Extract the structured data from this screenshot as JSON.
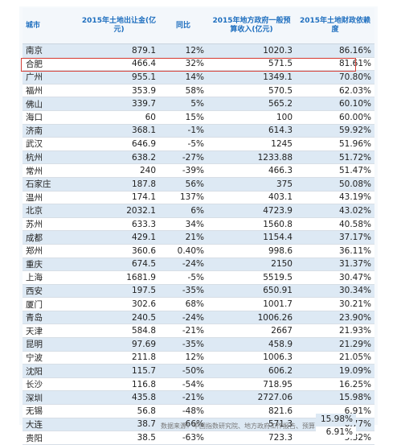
{
  "headers": {
    "city": "城市",
    "land_revenue": "2015年土地出让金(亿元)",
    "yoy": "同比",
    "budget_revenue": "2015年地方政府一般预算收入(亿元)",
    "dependence": "2015年土地财政依赖度"
  },
  "rows": [
    {
      "city": "南京",
      "land": "879.1",
      "yoy": "12%",
      "budget": "1020.3",
      "dep": "86.16%"
    },
    {
      "city": "合肥",
      "land": "466.4",
      "yoy": "32%",
      "budget": "571.5",
      "dep": "81.61%"
    },
    {
      "city": "广州",
      "land": "955.1",
      "yoy": "14%",
      "budget": "1349.1",
      "dep": "70.80%"
    },
    {
      "city": "福州",
      "land": "353.9",
      "yoy": "58%",
      "budget": "570.5",
      "dep": "62.03%"
    },
    {
      "city": "佛山",
      "land": "339.7",
      "yoy": "5%",
      "budget": "565.2",
      "dep": "60.10%"
    },
    {
      "city": "海口",
      "land": "60",
      "yoy": "15%",
      "budget": "100",
      "dep": "60.00%"
    },
    {
      "city": "济南",
      "land": "368.1",
      "yoy": "-1%",
      "budget": "614.3",
      "dep": "59.92%"
    },
    {
      "city": "武汉",
      "land": "646.9",
      "yoy": "-5%",
      "budget": "1245",
      "dep": "51.96%"
    },
    {
      "city": "杭州",
      "land": "638.2",
      "yoy": "-27%",
      "budget": "1233.88",
      "dep": "51.72%"
    },
    {
      "city": "常州",
      "land": "240",
      "yoy": "-39%",
      "budget": "466.3",
      "dep": "51.47%"
    },
    {
      "city": "石家庄",
      "land": "187.8",
      "yoy": "56%",
      "budget": "375",
      "dep": "50.08%"
    },
    {
      "city": "温州",
      "land": "174.1",
      "yoy": "137%",
      "budget": "403.1",
      "dep": "43.19%"
    },
    {
      "city": "北京",
      "land": "2032.1",
      "yoy": "6%",
      "budget": "4723.9",
      "dep": "43.02%"
    },
    {
      "city": "苏州",
      "land": "633.3",
      "yoy": "34%",
      "budget": "1560.8",
      "dep": "40.58%"
    },
    {
      "city": "成都",
      "land": "429.1",
      "yoy": "21%",
      "budget": "1154.4",
      "dep": "37.17%"
    },
    {
      "city": "郑州",
      "land": "360.6",
      "yoy": "0.40%",
      "budget": "998.6",
      "dep": "36.11%"
    },
    {
      "city": "重庆",
      "land": "674.5",
      "yoy": "-24%",
      "budget": "2150",
      "dep": "31.37%"
    },
    {
      "city": "上海",
      "land": "1681.9",
      "yoy": "-5%",
      "budget": "5519.5",
      "dep": "30.47%"
    },
    {
      "city": "西安",
      "land": "197.5",
      "yoy": "-35%",
      "budget": "650.91",
      "dep": "30.34%"
    },
    {
      "city": "厦门",
      "land": "302.6",
      "yoy": "68%",
      "budget": "1001.7",
      "dep": "30.21%"
    },
    {
      "city": "青岛",
      "land": "240.5",
      "yoy": "-24%",
      "budget": "1006.26",
      "dep": "23.90%"
    },
    {
      "city": "天津",
      "land": "584.8",
      "yoy": "-21%",
      "budget": "2667",
      "dep": "21.93%"
    },
    {
      "city": "昆明",
      "land": "97.69",
      "yoy": "-35%",
      "budget": "458.9",
      "dep": "21.29%"
    },
    {
      "city": "宁波",
      "land": "211.8",
      "yoy": "12%",
      "budget": "1006.3",
      "dep": "21.05%"
    },
    {
      "city": "沈阳",
      "land": "115.7",
      "yoy": "-50%",
      "budget": "606.2",
      "dep": "19.09%"
    },
    {
      "city": "长沙",
      "land": "116.8",
      "yoy": "-54%",
      "budget": "718.95",
      "dep": "16.25%"
    },
    {
      "city": "深圳",
      "land": "435.8",
      "yoy": "-21%",
      "budget": "2727.06",
      "dep": "15.98%"
    },
    {
      "city": "无锡",
      "land": "56.8",
      "yoy": "-48%",
      "budget": "821.6",
      "dep": "6.91%"
    },
    {
      "city": "大连",
      "land": "38.7",
      "yoy": "-66%",
      "budget": "571.3",
      "dep": "6.77%"
    },
    {
      "city": "贵阳",
      "land": "38.5",
      "yoy": "-63%",
      "budget": "723.3",
      "dep": "5.32%"
    }
  ],
  "extra_values": [
    "15.98%",
    "6.91%"
  ],
  "source": "数据来源：中国指数研究院、地方政府工作报告、预算",
  "colors": {
    "header_text": "#1f6fbf",
    "stripe": "#dde9f4",
    "highlight_border": "#d9433a"
  }
}
